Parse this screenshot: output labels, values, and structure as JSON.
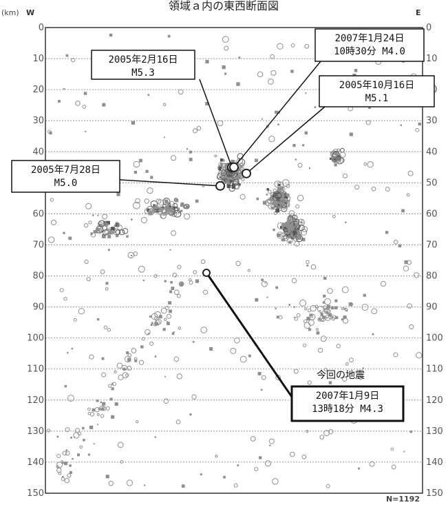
{
  "chart_data": {
    "type": "scatter",
    "title": "領域ａ内の東西断面図",
    "ylabel_unit": "(km)",
    "west_label": "W",
    "east_label": "E",
    "ylim": [
      0,
      150
    ],
    "y_ticks": [
      0,
      10,
      20,
      30,
      40,
      50,
      60,
      70,
      80,
      90,
      100,
      110,
      120,
      130,
      140,
      150
    ],
    "grid": true,
    "count_label": "N=1192",
    "colors": {
      "event": "#8a8a8a",
      "highlight": "#222222",
      "frame": "#333333"
    },
    "annotations": [
      {
        "id": "eq-20050216",
        "lines": [
          "2005年2月16日",
          "M5.3"
        ],
        "depth": 45
      },
      {
        "id": "eq-20070124",
        "lines": [
          "2007年1月24日",
          "10時30分 M4.0"
        ],
        "depth": 45
      },
      {
        "id": "eq-20051016",
        "lines": [
          "2005年10月16日",
          "M5.1"
        ],
        "depth": 47
      },
      {
        "id": "eq-20050728",
        "lines": [
          "2005年7月28日",
          "M5.0"
        ],
        "depth": 51
      },
      {
        "id": "eq-20070109",
        "header": "今回の地震",
        "lines": [
          "2007年1月9日",
          "13時18分 M4.3"
        ],
        "depth": 79
      }
    ]
  }
}
